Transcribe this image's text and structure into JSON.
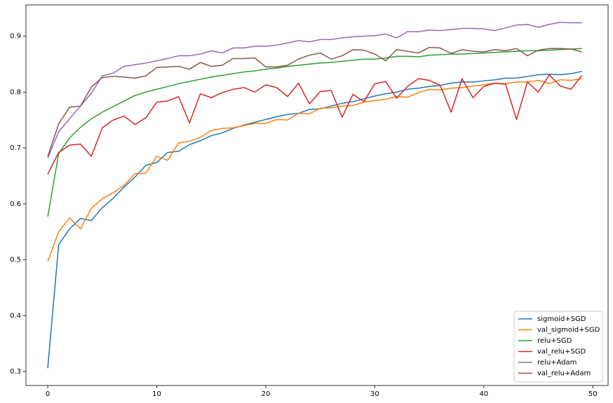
{
  "chart_data": {
    "type": "line",
    "x": [
      0,
      1,
      2,
      3,
      4,
      5,
      6,
      7,
      8,
      9,
      10,
      11,
      12,
      13,
      14,
      15,
      16,
      17,
      18,
      19,
      20,
      21,
      22,
      23,
      24,
      25,
      26,
      27,
      28,
      29,
      30,
      31,
      32,
      33,
      34,
      35,
      36,
      37,
      38,
      39,
      40,
      41,
      42,
      43,
      44,
      45,
      46,
      47,
      48,
      49
    ],
    "xlim": [
      -2,
      51.4
    ],
    "xticks": [
      0,
      10,
      20,
      30,
      40,
      50
    ],
    "ylim": [
      0.275,
      0.956
    ],
    "yticks": [
      0.3,
      0.4,
      0.5,
      0.6,
      0.7,
      0.8,
      0.9
    ],
    "legend": "lower right",
    "series": [
      {
        "name": "sigmoid+SGD",
        "color": "#1f77b4",
        "values": [
          0.306,
          0.527,
          0.555,
          0.574,
          0.57,
          0.593,
          0.61,
          0.63,
          0.648,
          0.669,
          0.674,
          0.692,
          0.694,
          0.706,
          0.713,
          0.722,
          0.727,
          0.735,
          0.741,
          0.746,
          0.751,
          0.756,
          0.76,
          0.762,
          0.769,
          0.77,
          0.775,
          0.78,
          0.783,
          0.788,
          0.793,
          0.797,
          0.8,
          0.805,
          0.807,
          0.81,
          0.812,
          0.816,
          0.818,
          0.818,
          0.82,
          0.822,
          0.825,
          0.825,
          0.828,
          0.831,
          0.832,
          0.831,
          0.833,
          0.837
        ]
      },
      {
        "name": "val_sigmoid+SGD",
        "color": "#ff7f0e",
        "values": [
          0.497,
          0.55,
          0.575,
          0.555,
          0.592,
          0.609,
          0.62,
          0.633,
          0.654,
          0.655,
          0.685,
          0.678,
          0.709,
          0.712,
          0.719,
          0.731,
          0.735,
          0.736,
          0.74,
          0.744,
          0.744,
          0.751,
          0.75,
          0.762,
          0.761,
          0.771,
          0.772,
          0.775,
          0.776,
          0.782,
          0.785,
          0.787,
          0.792,
          0.791,
          0.799,
          0.805,
          0.804,
          0.807,
          0.808,
          0.811,
          0.813,
          0.816,
          0.815,
          0.818,
          0.818,
          0.821,
          0.815,
          0.822,
          0.821,
          0.824
        ]
      },
      {
        "name": "relu+SGD",
        "color": "#2ca02c",
        "values": [
          0.577,
          0.69,
          0.718,
          0.737,
          0.752,
          0.764,
          0.774,
          0.784,
          0.794,
          0.8,
          0.805,
          0.81,
          0.815,
          0.819,
          0.823,
          0.827,
          0.83,
          0.833,
          0.836,
          0.838,
          0.841,
          0.843,
          0.846,
          0.848,
          0.85,
          0.852,
          0.853,
          0.855,
          0.857,
          0.859,
          0.859,
          0.861,
          0.864,
          0.864,
          0.863,
          0.866,
          0.867,
          0.868,
          0.868,
          0.869,
          0.87,
          0.871,
          0.872,
          0.873,
          0.874,
          0.874,
          0.875,
          0.876,
          0.877,
          0.878
        ]
      },
      {
        "name": "val_relu+SGD",
        "color": "#d62728",
        "values": [
          0.653,
          0.692,
          0.705,
          0.707,
          0.685,
          0.736,
          0.75,
          0.757,
          0.742,
          0.754,
          0.782,
          0.784,
          0.792,
          0.745,
          0.797,
          0.79,
          0.799,
          0.805,
          0.808,
          0.8,
          0.813,
          0.808,
          0.792,
          0.816,
          0.779,
          0.801,
          0.803,
          0.755,
          0.796,
          0.783,
          0.815,
          0.819,
          0.789,
          0.81,
          0.824,
          0.821,
          0.812,
          0.764,
          0.824,
          0.79,
          0.81,
          0.816,
          0.814,
          0.751,
          0.818,
          0.8,
          0.831,
          0.811,
          0.805,
          0.83
        ]
      },
      {
        "name": "relu+Adam",
        "color": "#9467bd",
        "values": [
          0.682,
          0.729,
          0.752,
          0.775,
          0.798,
          0.829,
          0.834,
          0.846,
          0.849,
          0.852,
          0.856,
          0.86,
          0.865,
          0.865,
          0.868,
          0.874,
          0.87,
          0.879,
          0.879,
          0.882,
          0.882,
          0.884,
          0.888,
          0.892,
          0.89,
          0.894,
          0.894,
          0.897,
          0.899,
          0.9,
          0.901,
          0.904,
          0.897,
          0.908,
          0.908,
          0.911,
          0.91,
          0.912,
          0.914,
          0.914,
          0.913,
          0.91,
          0.915,
          0.92,
          0.921,
          0.916,
          0.921,
          0.925,
          0.924,
          0.924
        ]
      },
      {
        "name": "val_relu+Adam",
        "color": "#8c564b",
        "values": [
          0.685,
          0.743,
          0.773,
          0.775,
          0.809,
          0.826,
          0.828,
          0.827,
          0.825,
          0.829,
          0.844,
          0.845,
          0.846,
          0.841,
          0.853,
          0.846,
          0.848,
          0.86,
          0.86,
          0.861,
          0.845,
          0.845,
          0.848,
          0.859,
          0.866,
          0.87,
          0.859,
          0.865,
          0.876,
          0.875,
          0.868,
          0.856,
          0.876,
          0.873,
          0.87,
          0.88,
          0.879,
          0.869,
          0.876,
          0.873,
          0.872,
          0.876,
          0.874,
          0.878,
          0.865,
          0.875,
          0.878,
          0.878,
          0.877,
          0.872
        ]
      }
    ]
  }
}
